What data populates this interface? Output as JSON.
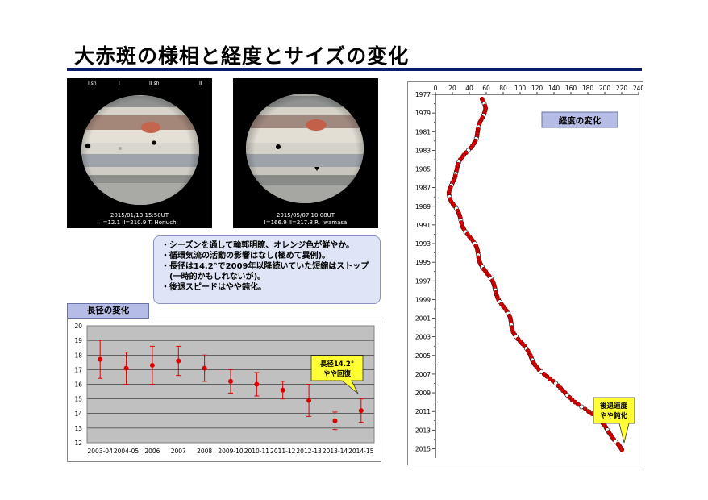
{
  "title": "大赤斑の様相と経度とサイズの変化",
  "photos": [
    {
      "top_labels": [
        "I sh",
        "I",
        "II sh",
        "II"
      ],
      "date": "2015/01/13 15:50UT",
      "meta": "I=12.1 II=210.9 T. Horiuchi"
    },
    {
      "date": "2015/05/07 10:08UT",
      "meta": "I=166.9 II=217.8 R. Iwamasa"
    }
  ],
  "notes": [
    "シーズンを通して輪郭明瞭、オレンジ色が鮮やか。",
    "循環気流の活動の影響はなし(極めて異例)。",
    "長径は14.2°で2009年以降続いていた短縮はストップ(一時的かもしれないが)。",
    "後退スピードはやや鈍化。"
  ],
  "size_chart_label": "長径の変化",
  "lon_chart_label": "経度の変化",
  "size_callout": [
    "長径14.2°",
    "やや回復"
  ],
  "lon_callout": [
    "後退速度",
    "やや鈍化"
  ],
  "colors": {
    "accent_rule": "#0a1f6e",
    "label_box": "#b5bde6",
    "points": "#dd0000",
    "plot_bg": "#c0c0c0"
  },
  "chart_data": [
    {
      "type": "scatter",
      "title": "長径の変化",
      "categories": [
        "2003-04",
        "2004-05",
        "2006",
        "2007",
        "2008",
        "2009-10",
        "2010-11",
        "2011-12",
        "2012-13",
        "2013-14",
        "2014-15"
      ],
      "values": [
        17.7,
        17.1,
        17.3,
        17.6,
        17.1,
        16.2,
        16.0,
        15.6,
        14.9,
        13.5,
        14.2
      ],
      "errors": [
        1.3,
        1.1,
        1.3,
        1.0,
        0.9,
        0.8,
        0.8,
        0.6,
        1.1,
        0.6,
        0.8
      ],
      "ylim": [
        12,
        20
      ],
      "yticks": [
        12,
        13,
        14,
        15,
        16,
        17,
        18,
        19,
        20
      ],
      "grid": true
    },
    {
      "type": "scatter",
      "title": "経度の変化",
      "xticks": [
        0,
        20,
        40,
        60,
        80,
        100,
        120,
        140,
        160,
        180,
        200,
        220,
        240
      ],
      "yticks": [
        1977,
        1979,
        1981,
        1983,
        1985,
        1987,
        1989,
        1991,
        1993,
        1995,
        1997,
        1999,
        2001,
        2003,
        2005,
        2007,
        2009,
        2011,
        2013,
        2015
      ],
      "xlim": [
        0,
        240
      ],
      "ylim": [
        1977,
        2016
      ],
      "y_inverted": true,
      "x_axis_position": "top",
      "track": [
        [
          55,
          1977.5
        ],
        [
          57,
          1978.5
        ],
        [
          56,
          1979.5
        ],
        [
          53,
          1980.5
        ],
        [
          48,
          1981.5
        ],
        [
          42,
          1982.5
        ],
        [
          35,
          1983.5
        ],
        [
          28,
          1984.5
        ],
        [
          22,
          1985.5
        ],
        [
          19,
          1986.5
        ],
        [
          18,
          1987.5
        ],
        [
          19,
          1988.5
        ],
        [
          24,
          1989.5
        ],
        [
          30,
          1990.5
        ],
        [
          36,
          1991.5
        ],
        [
          42,
          1992.5
        ],
        [
          47,
          1993.5
        ],
        [
          52,
          1994.5
        ],
        [
          57,
          1995.5
        ],
        [
          62,
          1996.5
        ],
        [
          68,
          1997.5
        ],
        [
          74,
          1998.5
        ],
        [
          79,
          1999.5
        ],
        [
          84,
          2000.5
        ],
        [
          89,
          2001.5
        ],
        [
          94,
          2002.5
        ],
        [
          100,
          2003.5
        ],
        [
          107,
          2004.5
        ],
        [
          115,
          2005.5
        ],
        [
          124,
          2006.5
        ],
        [
          134,
          2007.5
        ],
        [
          146,
          2008.5
        ],
        [
          160,
          2009.5
        ],
        [
          174,
          2010.5
        ],
        [
          187,
          2011.5
        ],
        [
          199,
          2012.5
        ],
        [
          209,
          2013.5
        ],
        [
          216,
          2014.5
        ],
        [
          219,
          2015.3
        ]
      ]
    }
  ]
}
